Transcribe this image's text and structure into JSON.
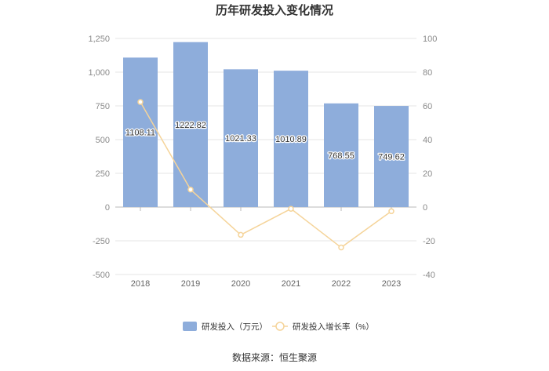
{
  "chart_data": {
    "type": "bar",
    "title": "历年研发投入变化情况",
    "categories": [
      "2018",
      "2019",
      "2020",
      "2021",
      "2022",
      "2023"
    ],
    "series": [
      {
        "name": "研发投入（万元）",
        "type": "bar",
        "y_axis": "left",
        "color": "#8eaddb",
        "values": [
          1108.11,
          1222.82,
          1021.33,
          1010.89,
          768.55,
          749.62
        ]
      },
      {
        "name": "研发投入增长率（%）",
        "type": "line",
        "y_axis": "right",
        "color": "#f5d49a",
        "values": [
          62.3,
          10.35,
          -16.48,
          -1.02,
          -23.97,
          -2.46
        ]
      }
    ],
    "y_left": {
      "min": -500,
      "max": 1250,
      "ticks": [
        -500,
        -250,
        0,
        250,
        500,
        750,
        1000,
        1250
      ],
      "tick_labels": [
        "-500",
        "-250",
        "0",
        "250",
        "500",
        "750",
        "1,000",
        "1,250"
      ]
    },
    "y_right": {
      "min": -40,
      "max": 100,
      "ticks": [
        -40,
        -20,
        0,
        20,
        40,
        60,
        80,
        100
      ],
      "tick_labels": [
        "-40",
        "-20",
        "0",
        "20",
        "40",
        "60",
        "80",
        "100"
      ]
    },
    "xlabel": "",
    "ylabel": "",
    "grid": true,
    "legend": "bottom",
    "data_labels": true
  },
  "source": "数据来源：恒生聚源"
}
